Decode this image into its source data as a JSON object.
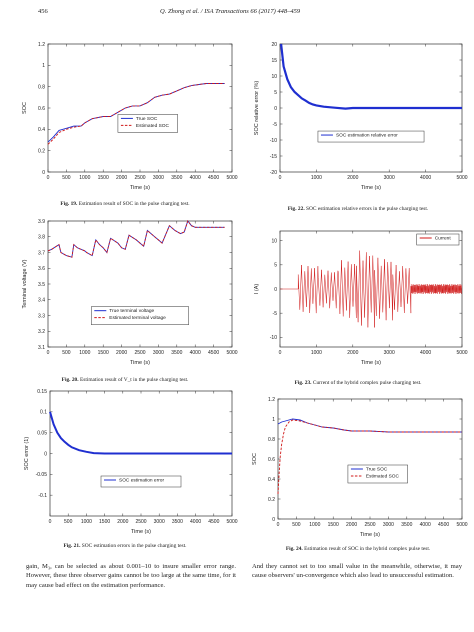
{
  "header": {
    "page_number": "456",
    "citation": "Q. Zhong et al. / ISA Transactions 66 (2017) 448–459"
  },
  "figures": [
    {
      "id": "fig19",
      "caption_label": "Fig. 19.",
      "caption_text": "Estimation result of SOC in the pulse charging test.",
      "chart_data": {
        "type": "line",
        "xlabel": "Time (s)",
        "ylabel": "SOC",
        "xlim": [
          0,
          5000
        ],
        "ylim": [
          0,
          1.2
        ],
        "xticks": [
          "0",
          "500",
          "1000",
          "1500",
          "2000",
          "2500",
          "3000",
          "3500",
          "4000",
          "4500",
          "5000"
        ],
        "yticks": [
          "0",
          "0.2",
          "0.4",
          "0.6",
          "0.8",
          "1",
          "1.2"
        ],
        "legend": {
          "position": "center-right",
          "entries": [
            "True SOC",
            "Estimated SOC"
          ]
        },
        "series": [
          {
            "name": "True SOC",
            "color": "#1f2fd0",
            "style": "solid",
            "x": [
              0,
              150,
              300,
              500,
              700,
              900,
              1000,
              1200,
              1500,
              1700,
              1900,
              2100,
              2300,
              2500,
              2700,
              2900,
              3100,
              3300,
              3500,
              3700,
              3900,
              4100,
              4300,
              4500,
              4700,
              4800
            ],
            "y": [
              0.28,
              0.33,
              0.39,
              0.41,
              0.43,
              0.43,
              0.46,
              0.5,
              0.52,
              0.52,
              0.56,
              0.6,
              0.62,
              0.62,
              0.65,
              0.7,
              0.72,
              0.73,
              0.76,
              0.79,
              0.81,
              0.82,
              0.83,
              0.83,
              0.83,
              0.83
            ]
          },
          {
            "name": "Estimated SOC",
            "color": "#d01818",
            "style": "dashed",
            "x": [
              0,
              150,
              300,
              500,
              700,
              900,
              1000,
              1200,
              1500,
              1700,
              1900,
              2100,
              2300,
              2500,
              2700,
              2900,
              3100,
              3300,
              3500,
              3700,
              3900,
              4100,
              4300,
              4500,
              4700,
              4800
            ],
            "y": [
              0.26,
              0.31,
              0.37,
              0.4,
              0.42,
              0.43,
              0.46,
              0.5,
              0.52,
              0.52,
              0.56,
              0.6,
              0.62,
              0.62,
              0.65,
              0.7,
              0.72,
              0.73,
              0.76,
              0.79,
              0.81,
              0.82,
              0.83,
              0.83,
              0.83,
              0.83
            ]
          }
        ]
      }
    },
    {
      "id": "fig22",
      "caption_label": "Fig. 22.",
      "caption_text": "SOC estimation relative errors in the pulse charging test.",
      "chart_data": {
        "type": "line",
        "xlabel": "Time (s)",
        "ylabel": "SOC relative error (%)",
        "xlim": [
          0,
          5000
        ],
        "ylim": [
          -20,
          20
        ],
        "xticks": [
          "0",
          "1000",
          "2000",
          "3000",
          "4000",
          "5000"
        ],
        "yticks": [
          "-20",
          "-15",
          "-10",
          "-5",
          "0",
          "5",
          "10",
          "15",
          "20"
        ],
        "legend": {
          "position": "bottom-center",
          "entries": [
            "SOC estimation relative error"
          ]
        },
        "series": [
          {
            "name": "SOC estimation relative error",
            "color": "#1f2fd0",
            "style": "solid",
            "width": 2.2,
            "x": [
              30,
              100,
              200,
              300,
              400,
              500,
              600,
              700,
              800,
              900,
              1000,
              1200,
              1500,
              1800,
              2000,
              2500,
              3000,
              4000,
              5000
            ],
            "y": [
              20,
              13,
              9,
              6.5,
              5,
              4,
              3,
              2.3,
              1.6,
              1.1,
              0.8,
              0.4,
              0.1,
              -0.2,
              0,
              0,
              0,
              0,
              0
            ]
          }
        ]
      }
    },
    {
      "id": "fig20",
      "caption_label": "Fig. 20.",
      "caption_text": "Estimation result of V_t in the pulse charging test.",
      "chart_data": {
        "type": "line",
        "xlabel": "Time (s)",
        "ylabel": "Terminal voltage (V)",
        "xlim": [
          0,
          5000
        ],
        "ylim": [
          3.1,
          3.9
        ],
        "xticks": [
          "0",
          "500",
          "1000",
          "1500",
          "2000",
          "2500",
          "3000",
          "3500",
          "4000",
          "4500",
          "5000"
        ],
        "yticks": [
          "3.1",
          "3.2",
          "3.3",
          "3.4",
          "3.5",
          "3.6",
          "3.7",
          "3.8",
          "3.9"
        ],
        "legend": {
          "position": "bottom-center",
          "entries": [
            "True terminal voltage",
            "Estimated terminal voltage"
          ]
        },
        "series": [
          {
            "name": "True terminal voltage",
            "color": "#1f2fd0",
            "style": "solid",
            "x": [
              0,
              100,
              300,
              350,
              500,
              650,
              700,
              800,
              1000,
              1050,
              1200,
              1300,
              1400,
              1500,
              1600,
              1700,
              1900,
              2000,
              2100,
              2200,
              2400,
              2500,
              2600,
              2700,
              2900,
              3000,
              3100,
              3300,
              3450,
              3600,
              3700,
              3800,
              3900,
              4000,
              4200,
              4500,
              4800
            ],
            "y": [
              3.71,
              3.72,
              3.75,
              3.7,
              3.68,
              3.67,
              3.75,
              3.73,
              3.71,
              3.7,
              3.68,
              3.78,
              3.75,
              3.73,
              3.7,
              3.79,
              3.76,
              3.73,
              3.72,
              3.81,
              3.78,
              3.76,
              3.74,
              3.84,
              3.8,
              3.78,
              3.76,
              3.87,
              3.84,
              3.82,
              3.83,
              3.9,
              3.87,
              3.86,
              3.86,
              3.86,
              3.86
            ]
          },
          {
            "name": "Estimated terminal voltage",
            "color": "#d01818",
            "style": "dashed",
            "x": [
              0,
              100,
              300,
              350,
              500,
              650,
              700,
              800,
              1000,
              1050,
              1200,
              1300,
              1400,
              1500,
              1600,
              1700,
              1900,
              2000,
              2100,
              2200,
              2400,
              2500,
              2600,
              2700,
              2900,
              3000,
              3100,
              3300,
              3450,
              3600,
              3700,
              3800,
              3900,
              4000,
              4200,
              4500,
              4800
            ],
            "y": [
              3.71,
              3.72,
              3.75,
              3.7,
              3.68,
              3.67,
              3.75,
              3.73,
              3.71,
              3.7,
              3.68,
              3.78,
              3.75,
              3.73,
              3.7,
              3.79,
              3.76,
              3.73,
              3.72,
              3.81,
              3.78,
              3.76,
              3.74,
              3.84,
              3.8,
              3.78,
              3.76,
              3.87,
              3.84,
              3.82,
              3.83,
              3.9,
              3.87,
              3.86,
              3.86,
              3.86,
              3.86
            ]
          }
        ]
      }
    },
    {
      "id": "fig23",
      "caption_label": "Fig. 23.",
      "caption_text": "Current of the hybrid complex pulse charging test.",
      "chart_data": {
        "type": "line",
        "xlabel": "Time (s)",
        "ylabel": "I (A)",
        "xlim": [
          0,
          5000
        ],
        "ylim": [
          -12,
          12
        ],
        "xticks": [
          "0",
          "1000",
          "2000",
          "3000",
          "4000",
          "5000"
        ],
        "yticks": [
          "-10",
          "-5",
          "0",
          "5",
          "10"
        ],
        "legend": {
          "position": "top-right",
          "entries": [
            "Current"
          ]
        },
        "series": [
          {
            "name": "Current",
            "color": "#d01818",
            "style": "solid",
            "bands": [
              {
                "x0": 500,
                "x1": 1050,
                "amp": 5
              },
              {
                "x0": 1050,
                "x1": 1600,
                "amp": 4
              },
              {
                "x0": 1600,
                "x1": 2100,
                "amp": 6
              },
              {
                "x0": 2100,
                "x1": 2600,
                "amp": 8
              },
              {
                "x0": 2600,
                "x1": 3100,
                "amp": 6.5
              },
              {
                "x0": 3100,
                "x1": 3600,
                "amp": 5
              },
              {
                "x0": 3600,
                "x1": 5000,
                "amp": 1
              }
            ]
          }
        ]
      }
    },
    {
      "id": "fig21",
      "caption_label": "Fig. 21.",
      "caption_text": "SOC estimation errors in the pulse charging test.",
      "chart_data": {
        "type": "line",
        "xlabel": "Time (s)",
        "ylabel": "SOC error (1)",
        "xlim": [
          0,
          5000
        ],
        "ylim": [
          -0.15,
          0.15
        ],
        "xticks": [
          "0",
          "500",
          "1000",
          "1500",
          "2000",
          "2500",
          "3000",
          "3500",
          "4000",
          "4500",
          "5000"
        ],
        "yticks": [
          "-0.1",
          "-0.05",
          "0",
          "0.05",
          "0.1",
          "0.15"
        ],
        "legend": {
          "position": "bottom-center",
          "entries": [
            "SOC estimation error"
          ]
        },
        "series": [
          {
            "name": "SOC estimation error",
            "color": "#1f2fd0",
            "style": "solid",
            "width": 2,
            "x": [
              0,
              100,
              200,
              300,
              400,
              500,
              600,
              800,
              1000,
              1200,
              1500,
              2000,
              3000,
              4000,
              5000
            ],
            "y": [
              0.1,
              0.07,
              0.05,
              0.037,
              0.028,
              0.021,
              0.015,
              0.008,
              0.004,
              0.001,
              0,
              0,
              0,
              0,
              0
            ]
          }
        ]
      }
    },
    {
      "id": "fig24",
      "caption_label": "Fig. 24.",
      "caption_text": "Estimation result of SOC in the hybrid complex pulse test.",
      "chart_data": {
        "type": "line",
        "xlabel": "Time (s)",
        "ylabel": "SOC",
        "xlim": [
          0,
          5000
        ],
        "ylim": [
          0,
          1.2
        ],
        "xticks": [
          "0",
          "500",
          "1000",
          "1500",
          "2000",
          "2500",
          "3000",
          "3500",
          "4000",
          "4500",
          "5000"
        ],
        "yticks": [
          "0",
          "0.2",
          "0.4",
          "0.6",
          "0.8",
          "1",
          "1.2"
        ],
        "legend": {
          "position": "center-right",
          "entries": [
            "True SOC",
            "Estimated SOC"
          ]
        },
        "series": [
          {
            "name": "True SOC",
            "color": "#1f2fd0",
            "style": "solid",
            "x": [
              0,
              100,
              200,
              400,
              600,
              800,
              1000,
              1200,
              1500,
              1800,
              2000,
              2500,
              3000,
              3500,
              4000,
              4500,
              5000
            ],
            "y": [
              0.95,
              0.97,
              0.98,
              1.0,
              0.99,
              0.96,
              0.94,
              0.92,
              0.91,
              0.89,
              0.88,
              0.88,
              0.87,
              0.87,
              0.87,
              0.87,
              0.87
            ]
          },
          {
            "name": "Estimated SOC",
            "color": "#d01818",
            "style": "dashed",
            "x": [
              0,
              30,
              60,
              100,
              150,
              200,
              300,
              400,
              600,
              800,
              1000,
              1200,
              1500,
              1800,
              2000,
              2500,
              3000,
              3500,
              4000,
              4500,
              5000
            ],
            "y": [
              0.25,
              0.45,
              0.62,
              0.75,
              0.85,
              0.92,
              0.97,
              0.99,
              0.98,
              0.96,
              0.94,
              0.92,
              0.91,
              0.89,
              0.88,
              0.88,
              0.87,
              0.87,
              0.87,
              0.87,
              0.87
            ]
          }
        ]
      }
    }
  ],
  "body": {
    "left": "gain, M₃, can be selected as about 0.001–10 to insure smaller error range. However, these three observer gains cannot be too large at the same time, for it may cause bad effect on the estimation performance.",
    "right": "And they cannot set to too small value in the meanwhile, otherwise, it may cause observers' un-convergence which also lead to unsuccessful estimation."
  }
}
